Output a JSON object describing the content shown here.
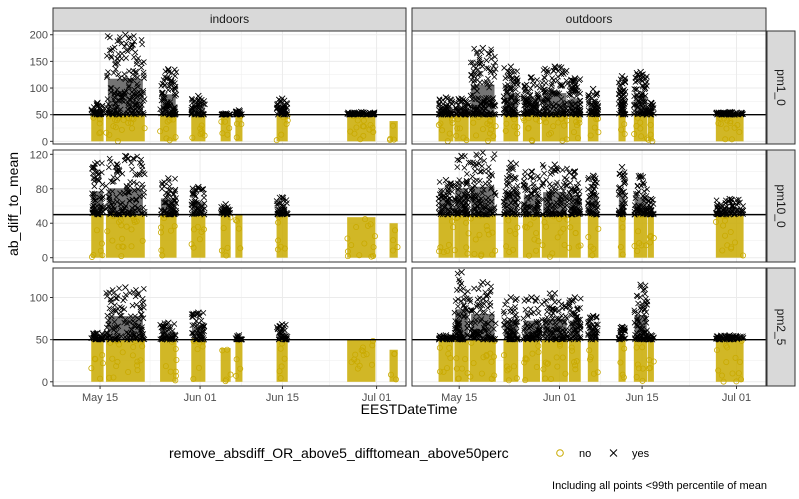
{
  "chart_data": {
    "type": "scatter",
    "xlabel": "EESTDateTime",
    "ylabel": "ab_diff_to_mean",
    "caption": "Including all points <99th percentile of mean",
    "x_ticks": [
      "May 15",
      "Jun 01",
      "Jun 15",
      "Jul 01"
    ],
    "x_tick_days": [
      15,
      32,
      46,
      62
    ],
    "x_range_days": [
      7,
      67
    ],
    "threshold": 50,
    "grid": true,
    "legend": {
      "title": "remove_absdiff_OR_above5_difftomean_above50perc",
      "position": "bottom",
      "items": [
        {
          "label": "no",
          "marker": "open-circle",
          "color": "#C9AA00"
        },
        {
          "label": "yes",
          "marker": "x",
          "color": "#000000"
        }
      ]
    },
    "columns": [
      "indoors",
      "outdoors"
    ],
    "rows": [
      {
        "name": "pm1_0",
        "ylim": [
          -5,
          207
        ],
        "yticks": [
          0,
          50,
          100,
          150,
          200
        ]
      },
      {
        "name": "pm10_0",
        "ylim": [
          -5,
          125
        ],
        "yticks": [
          0,
          40,
          80,
          120
        ]
      },
      {
        "name": "pm2_5",
        "ylim": [
          -5,
          135
        ],
        "yticks": [
          0,
          50,
          100
        ]
      }
    ],
    "series_description": "Clusters of measurement time blocks; each cluster has a yellow 'no' band from 0 to ~50 and black 'yes' crosses above 50 up to a peak value",
    "clusters": {
      "indoors": [
        {
          "start": 13.5,
          "end": 15.6,
          "peak": [
            72,
            110,
            58
          ]
        },
        {
          "start": 16.0,
          "end": 22.6,
          "peak": [
            200,
            118,
            112
          ]
        },
        {
          "start": 25.2,
          "end": 28.0,
          "peak": [
            135,
            92,
            70
          ]
        },
        {
          "start": 30.5,
          "end": 32.9,
          "peak": [
            85,
            82,
            82
          ]
        },
        {
          "start": 35.5,
          "end": 37.2,
          "peak": [
            52,
            62,
            40
          ]
        },
        {
          "start": 38.0,
          "end": 39.2,
          "peak": [
            58,
            50,
            55
          ]
        },
        {
          "start": 45.0,
          "end": 46.9,
          "peak": [
            80,
            70,
            68
          ]
        },
        {
          "start": 57.0,
          "end": 61.8,
          "peak": [
            55,
            47,
            50
          ]
        },
        {
          "start": 64.2,
          "end": 65.6,
          "peak": [
            38,
            40,
            38
          ]
        }
      ],
      "outdoors": [
        {
          "start": 11.5,
          "end": 14.0,
          "peak": [
            82,
            90,
            55
          ]
        },
        {
          "start": 14.2,
          "end": 16.6,
          "peak": [
            80,
            118,
            130
          ]
        },
        {
          "start": 16.8,
          "end": 21.2,
          "peak": [
            175,
            122,
            118
          ]
        },
        {
          "start": 22.5,
          "end": 25.0,
          "peak": [
            140,
            110,
            100
          ]
        },
        {
          "start": 25.8,
          "end": 28.7,
          "peak": [
            120,
            100,
            100
          ]
        },
        {
          "start": 29.0,
          "end": 33.4,
          "peak": [
            140,
            108,
            105
          ]
        },
        {
          "start": 33.6,
          "end": 35.6,
          "peak": [
            118,
            100,
            100
          ]
        },
        {
          "start": 36.8,
          "end": 38.6,
          "peak": [
            98,
            95,
            78
          ]
        },
        {
          "start": 42.0,
          "end": 43.2,
          "peak": [
            122,
            105,
            65
          ]
        },
        {
          "start": 44.6,
          "end": 46.9,
          "peak": [
            130,
            95,
            115
          ]
        },
        {
          "start": 47.0,
          "end": 48.0,
          "peak": [
            72,
            68,
            55
          ]
        },
        {
          "start": 58.5,
          "end": 63.2,
          "peak": [
            55,
            68,
            55
          ]
        }
      ]
    }
  }
}
